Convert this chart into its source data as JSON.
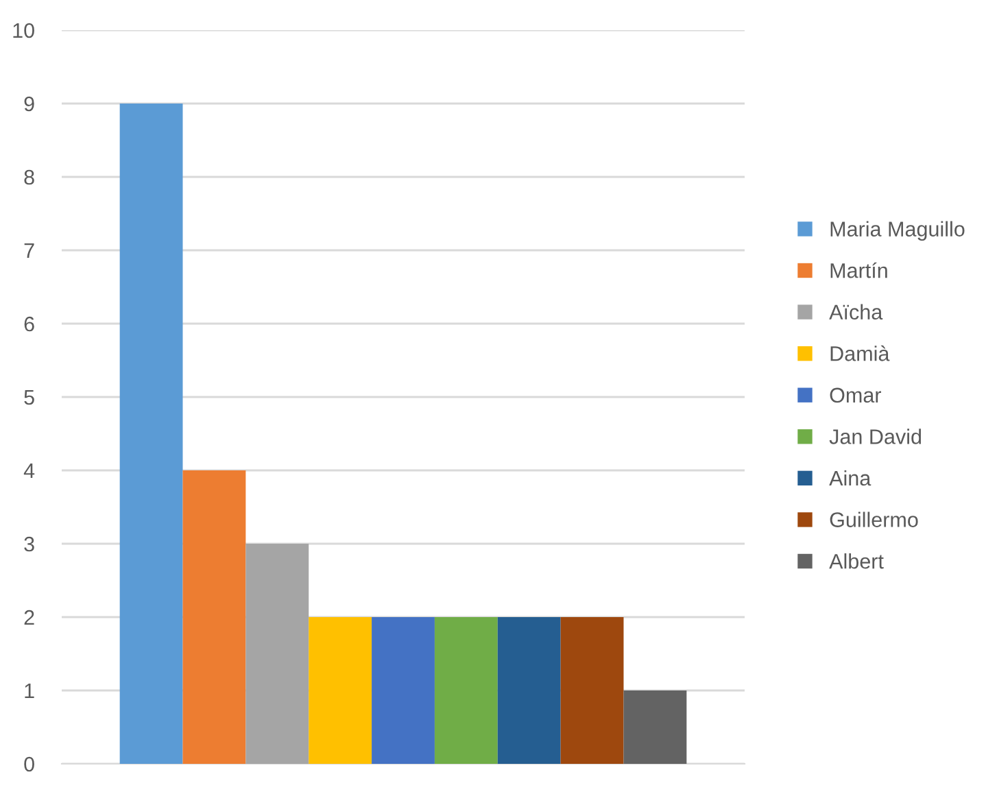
{
  "chart_data": {
    "type": "bar",
    "categories": [
      null
    ],
    "series": [
      {
        "name": "Maria Maguillo",
        "color": "#5b9bd5",
        "values": [
          9
        ]
      },
      {
        "name": "Martín",
        "color": "#ed7d31",
        "values": [
          4
        ]
      },
      {
        "name": "Aïcha",
        "color": "#a5a5a5",
        "values": [
          3
        ]
      },
      {
        "name": "Damià",
        "color": "#ffc000",
        "values": [
          2
        ]
      },
      {
        "name": "Omar",
        "color": "#4472c4",
        "values": [
          2
        ]
      },
      {
        "name": "Jan David",
        "color": "#70ad47",
        "values": [
          2
        ]
      },
      {
        "name": "Aina",
        "color": "#255e91",
        "values": [
          2
        ]
      },
      {
        "name": "Guillermo",
        "color": "#9e480e",
        "values": [
          2
        ]
      },
      {
        "name": "Albert",
        "color": "#636363",
        "values": [
          1
        ]
      }
    ],
    "ylim": [
      0,
      10
    ],
    "yticks": [
      0,
      1,
      2,
      3,
      4,
      5,
      6,
      7,
      8,
      9,
      10
    ],
    "grid": "y",
    "legend": "right"
  }
}
